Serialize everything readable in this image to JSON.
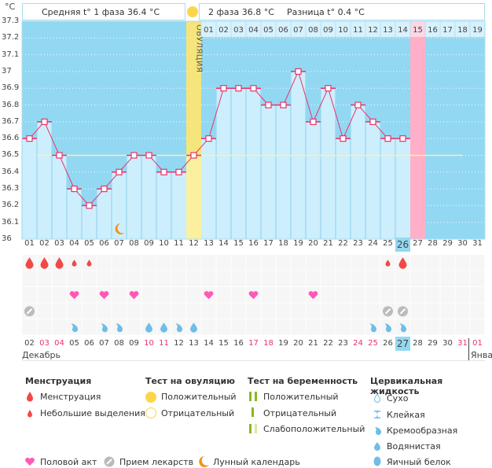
{
  "header": {
    "unit": "°C",
    "phase1_label": "Средняя t° 1 фаза 36.4 °C",
    "phase2_label": "2 фаза 36.8 °C",
    "diff_label": "Разница t° 0.4 °C",
    "ovulation_label": "ОВУЛЯЦИЯ"
  },
  "chart_data": {
    "type": "line",
    "title": "",
    "ylabel": "°C",
    "ylim": [
      36.0,
      37.3
    ],
    "yticks": [
      "37.3",
      "37.2",
      "37.1",
      "37",
      "36.9",
      "36.8",
      "36.7",
      "36.6",
      "36.5",
      "36.4",
      "36.3",
      "36.2",
      "36.1",
      "36"
    ],
    "x": [
      "01",
      "02",
      "03",
      "04",
      "05",
      "06",
      "07",
      "08",
      "09",
      "10",
      "11",
      "12",
      "13",
      "14",
      "15",
      "16",
      "17",
      "18",
      "19",
      "20",
      "21",
      "22",
      "23",
      "24",
      "25",
      "26",
      "27",
      "28",
      "29",
      "30",
      "31"
    ],
    "series": [
      {
        "name": "Базальная температура",
        "values": [
          36.6,
          36.7,
          36.5,
          36.3,
          36.2,
          36.3,
          36.4,
          36.5,
          36.5,
          36.4,
          36.4,
          36.5,
          36.6,
          36.9,
          36.9,
          36.9,
          36.8,
          36.8,
          37.0,
          36.7,
          36.9,
          36.6,
          36.8,
          36.7,
          36.6,
          36.6,
          null,
          null,
          null,
          null,
          null
        ]
      }
    ],
    "coverline": 36.5,
    "coverline_range": [
      "02",
      "30"
    ],
    "ovulation_day": "12",
    "menstruation_next_day": "27",
    "today_day": "26",
    "phase2_day_labels": [
      "01",
      "02",
      "03",
      "04",
      "05",
      "06",
      "07",
      "08",
      "09",
      "10",
      "11",
      "12",
      "13",
      "14",
      "15",
      "16",
      "17",
      "18",
      "19"
    ],
    "lunar_calendar_day": "07"
  },
  "dates_cycle": [
    "01",
    "02",
    "03",
    "04",
    "05",
    "06",
    "07",
    "08",
    "09",
    "10",
    "11",
    "12",
    "13",
    "14",
    "15",
    "16",
    "17",
    "18",
    "19",
    "20",
    "21",
    "22",
    "23",
    "24",
    "25",
    "26",
    "27",
    "28",
    "29",
    "30",
    "31"
  ],
  "dates_calendar": [
    {
      "d": "02",
      "red": false
    },
    {
      "d": "03",
      "red": true
    },
    {
      "d": "04",
      "red": true
    },
    {
      "d": "05",
      "red": false
    },
    {
      "d": "06",
      "red": false
    },
    {
      "d": "07",
      "red": false
    },
    {
      "d": "08",
      "red": false
    },
    {
      "d": "09",
      "red": false
    },
    {
      "d": "10",
      "red": true
    },
    {
      "d": "11",
      "red": true
    },
    {
      "d": "12",
      "red": false
    },
    {
      "d": "13",
      "red": false
    },
    {
      "d": "14",
      "red": false
    },
    {
      "d": "15",
      "red": false
    },
    {
      "d": "16",
      "red": false
    },
    {
      "d": "17",
      "red": true
    },
    {
      "d": "18",
      "red": true
    },
    {
      "d": "19",
      "red": false
    },
    {
      "d": "20",
      "red": false
    },
    {
      "d": "21",
      "red": false
    },
    {
      "d": "22",
      "red": false
    },
    {
      "d": "23",
      "red": false
    },
    {
      "d": "24",
      "red": true
    },
    {
      "d": "25",
      "red": true
    },
    {
      "d": "26",
      "red": false
    },
    {
      "d": "27",
      "red": false,
      "today": true
    },
    {
      "d": "28",
      "red": false
    },
    {
      "d": "29",
      "red": false
    },
    {
      "d": "30",
      "red": false
    },
    {
      "d": "31",
      "red": true
    },
    {
      "d": "01",
      "red": true
    }
  ],
  "months": {
    "first": "Декабрь",
    "second": "Янва"
  },
  "icon_rows": {
    "menstruation": {
      "01": "full",
      "02": "full",
      "03": "full",
      "04": "spotting",
      "05": "spotting",
      "25": "spotting",
      "26": "full"
    },
    "intercourse": [
      "04",
      "06",
      "08",
      "13",
      "16",
      "20"
    ],
    "medication": [
      "01",
      "25",
      "26"
    ],
    "cervical_fluid": {
      "04": "creamy",
      "06": "creamy",
      "07": "creamy",
      "09": "watery",
      "10": "watery",
      "11": "creamy",
      "12": "watery",
      "24": "creamy",
      "25": "creamy",
      "26": "creamy"
    }
  },
  "legend": {
    "menstruation": {
      "title": "Менструация",
      "items": [
        "Менструация",
        "Небольшие выделения"
      ]
    },
    "ovulation_test": {
      "title": "Тест на овуляцию",
      "items": [
        "Положительный",
        "Отрицательный"
      ]
    },
    "pregnancy_test": {
      "title": "Тест на беременность",
      "items": [
        "Положительный",
        "Отрицательный",
        "Слабоположительный"
      ]
    },
    "cervical_fluid": {
      "title": "Цервикальная жидкость",
      "items": [
        "Сухо",
        "Клейкая",
        "Кремообразная",
        "Водянистая",
        "Яичный белок"
      ]
    },
    "other": [
      "Половой акт",
      "Прием лекарств",
      "Лунный календарь"
    ]
  },
  "colors": {
    "bg_sky": "#93d8f2",
    "bar_fill": "#cdeefc",
    "line": "#e8336a",
    "ovulation": "#faf0a0",
    "period": "#ffb0c8",
    "menstruation": "#f24848",
    "heart": "#ff59b8",
    "pill": "#bbbbbb",
    "fluid": "#6fbde8",
    "moon": "#f39317",
    "red_date": "#e8336a",
    "preg_green": "#8ab81c"
  }
}
